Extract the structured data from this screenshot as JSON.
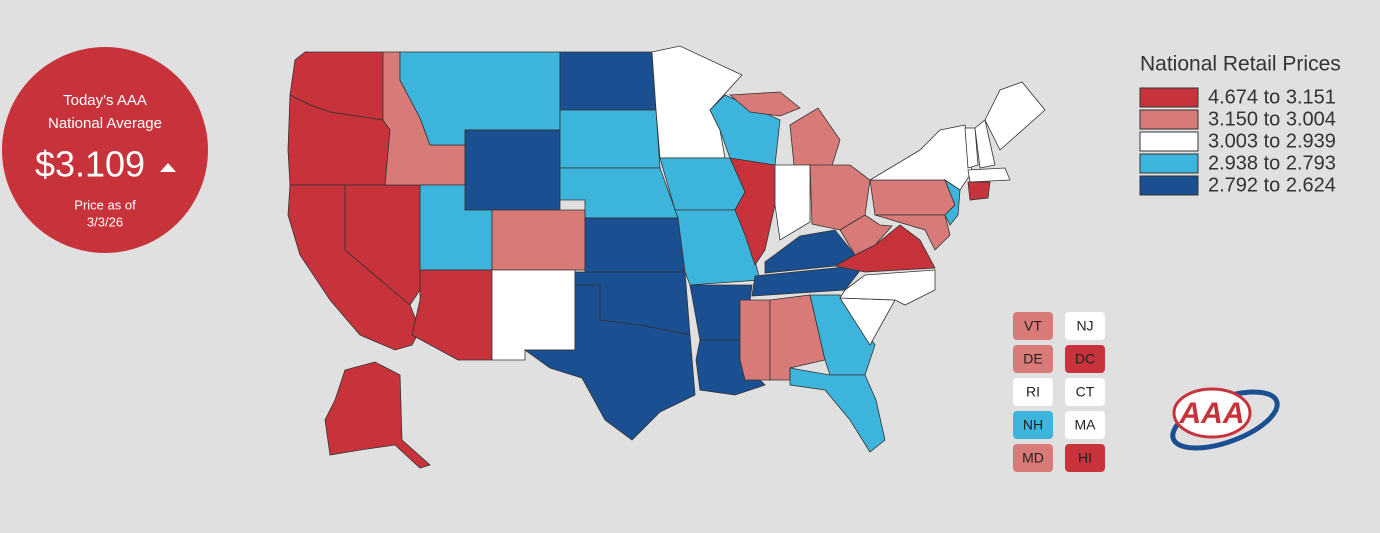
{
  "badge": {
    "line1": "Today's AAA",
    "line2": "National Average",
    "price": "$3.109",
    "as_of_label": "Price as of",
    "as_of_date": "3/3/26"
  },
  "legend": {
    "title": "National Retail Prices",
    "items": [
      {
        "label": "4.674 to 3.151",
        "color": "#c8333b"
      },
      {
        "label": "3.150 to 3.004",
        "color": "#d87a78"
      },
      {
        "label": "3.003 to 2.939",
        "color": "#ffffff"
      },
      {
        "label": "2.938 to 2.793",
        "color": "#3db4dc"
      },
      {
        "label": "2.792 to 2.624",
        "color": "#1a4f91"
      }
    ]
  },
  "state_bins": [
    0,
    0,
    0,
    0,
    1,
    3,
    4,
    3,
    0,
    1,
    2,
    4,
    3,
    3,
    4,
    4,
    4,
    2,
    3,
    3,
    3,
    0,
    1,
    2,
    1,
    4,
    4,
    4,
    4,
    1,
    1,
    3,
    3,
    2,
    2,
    0,
    1,
    1,
    2,
    1,
    3,
    2,
    2,
    2,
    2,
    0,
    0
  ],
  "small_states": [
    {
      "label": "VT",
      "bin": 1
    },
    {
      "label": "NJ",
      "bin": 2
    },
    {
      "label": "DE",
      "bin": 1
    },
    {
      "label": "DC",
      "bin": 0
    },
    {
      "label": "RI",
      "bin": 2
    },
    {
      "label": "CT",
      "bin": 2
    },
    {
      "label": "NH",
      "bin": 3
    },
    {
      "label": "MA",
      "bin": 2
    },
    {
      "label": "MD",
      "bin": 1
    },
    {
      "label": "HI",
      "bin": 0
    }
  ],
  "logo": "AAA"
}
